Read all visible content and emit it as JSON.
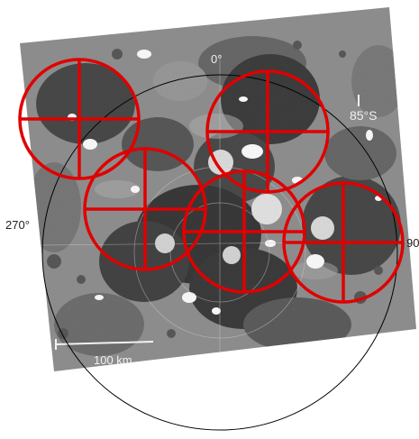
{
  "image": {
    "description_free": true,
    "colors": {
      "terrain_dark": "#3a3a3a",
      "terrain_mid": "#8a8a8a",
      "terrain_light": "#bdbdbd",
      "ice_patch": "#ffffff",
      "target_circle": "#e00000",
      "projection_outline": "#000000"
    }
  },
  "labels": {
    "north": "0°",
    "latitude": "85°S",
    "west": "270°",
    "east": "90",
    "scale": "100 km"
  },
  "markers": {
    "count": 5,
    "icon": "crosshair-circle-icon"
  }
}
